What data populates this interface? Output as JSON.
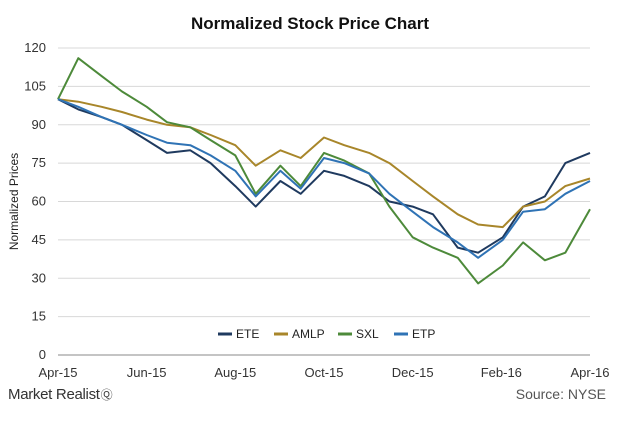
{
  "chart_data": {
    "type": "line",
    "title": "Normalized Stock Price Chart",
    "xlabel": "",
    "ylabel": "Normalized Prices",
    "ylim": [
      0,
      120
    ],
    "yticks": [
      0,
      15,
      30,
      45,
      60,
      75,
      90,
      105,
      120
    ],
    "xticks": [
      "Apr-15",
      "Jun-15",
      "Aug-15",
      "Oct-15",
      "Dec-15",
      "Feb-16",
      "Apr-16"
    ],
    "xlim": [
      "2015-04-01",
      "2016-04-01"
    ],
    "grid": "horizontal",
    "legend": "bottom-inside",
    "x": [
      "2015-04-01",
      "2015-04-15",
      "2015-05-01",
      "2015-05-15",
      "2015-06-01",
      "2015-06-15",
      "2015-07-01",
      "2015-07-15",
      "2015-08-01",
      "2015-08-15",
      "2015-09-01",
      "2015-09-15",
      "2015-10-01",
      "2015-10-15",
      "2015-11-01",
      "2015-11-15",
      "2015-12-01",
      "2015-12-15",
      "2016-01-01",
      "2016-01-15",
      "2016-02-01",
      "2016-02-15",
      "2016-03-01",
      "2016-03-15",
      "2016-04-01"
    ],
    "series": [
      {
        "name": "ETE",
        "color": "#1f3a5f",
        "values": [
          100,
          96,
          93,
          90,
          84,
          79,
          80,
          75,
          66,
          58,
          68,
          63,
          72,
          70,
          66,
          60,
          58,
          55,
          42,
          40,
          46,
          58,
          62,
          75,
          79
        ]
      },
      {
        "name": "AMLP",
        "color": "#a8862a",
        "values": [
          100,
          99,
          97,
          95,
          92,
          90,
          89,
          86,
          82,
          74,
          80,
          77,
          85,
          82,
          79,
          75,
          68,
          62,
          55,
          51,
          50,
          58,
          60,
          66,
          69
        ]
      },
      {
        "name": "SXL",
        "color": "#4d8a3a",
        "values": [
          100,
          116,
          109,
          103,
          97,
          91,
          89,
          84,
          78,
          63,
          74,
          66,
          79,
          76,
          71,
          58,
          46,
          42,
          38,
          28,
          35,
          44,
          37,
          40,
          57
        ]
      },
      {
        "name": "ETP",
        "color": "#2f73b5",
        "values": [
          100,
          97,
          93,
          90,
          86,
          83,
          82,
          78,
          72,
          62,
          72,
          65,
          77,
          75,
          71,
          63,
          56,
          50,
          44,
          38,
          45,
          56,
          57,
          63,
          68
        ]
      }
    ]
  },
  "brand": {
    "name": "Market Realist",
    "mark": "Ⓠ"
  },
  "source": "Source: NYSE"
}
